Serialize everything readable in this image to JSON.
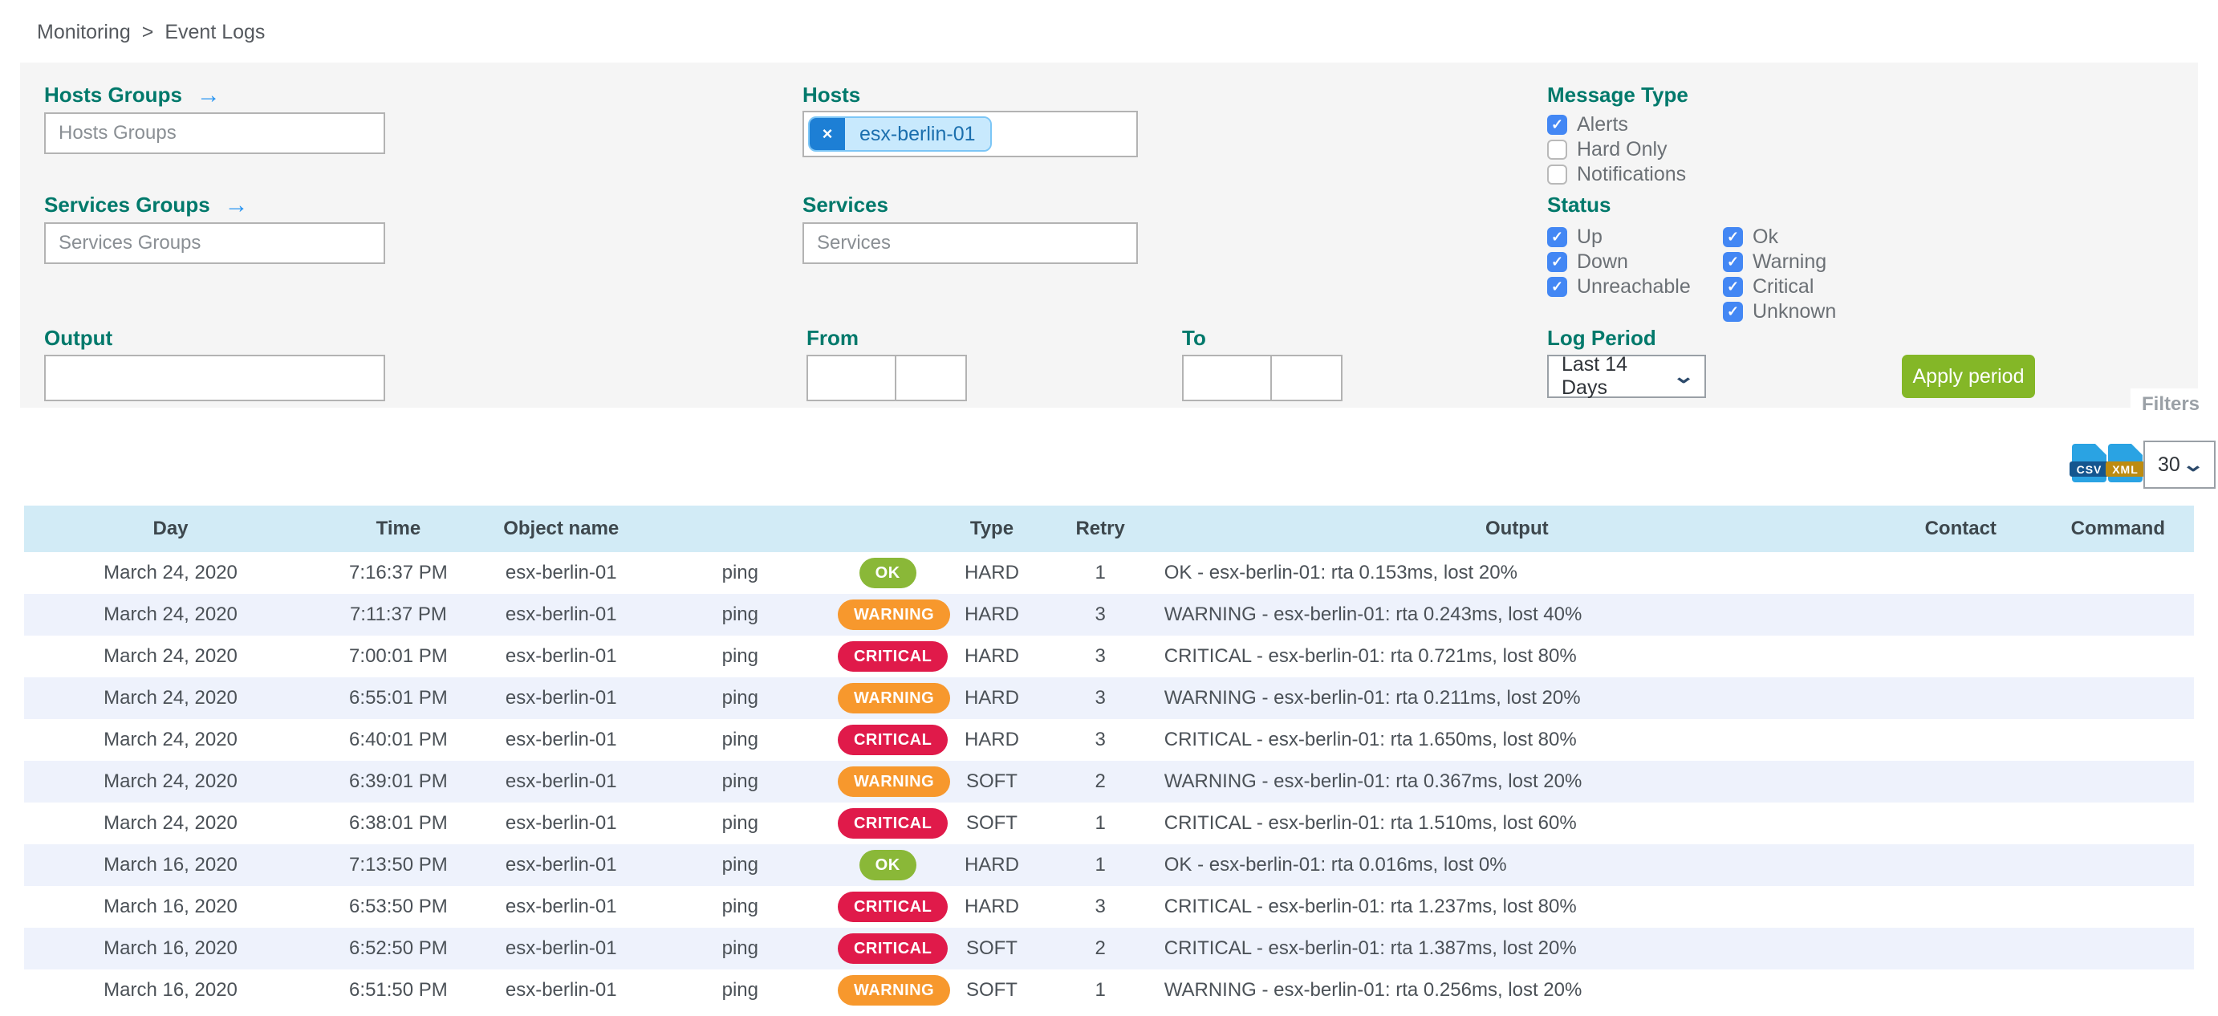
{
  "breadcrumb": {
    "items": [
      "Monitoring",
      "Event Logs"
    ],
    "separator": ">"
  },
  "filters": {
    "hosts_groups": {
      "label": "Hosts Groups",
      "placeholder": "Hosts Groups",
      "arrow": "→"
    },
    "services_groups": {
      "label": "Services Groups",
      "placeholder": "Services Groups",
      "arrow": "→"
    },
    "hosts": {
      "label": "Hosts",
      "chip": "esx-berlin-01",
      "chip_remove": "×"
    },
    "services": {
      "label": "Services",
      "placeholder": "Services"
    },
    "output": {
      "label": "Output",
      "value": ""
    },
    "from": {
      "label": "From",
      "date_value": "",
      "time_value": ""
    },
    "to": {
      "label": "To",
      "date_value": "",
      "time_value": ""
    },
    "message_type": {
      "label": "Message Type",
      "options": [
        {
          "label": "Alerts",
          "checked": true
        },
        {
          "label": "Hard Only",
          "checked": false
        },
        {
          "label": "Notifications",
          "checked": false
        }
      ]
    },
    "status": {
      "label": "Status",
      "col1": [
        {
          "label": "Up",
          "checked": true
        },
        {
          "label": "Down",
          "checked": true
        },
        {
          "label": "Unreachable",
          "checked": true
        }
      ],
      "col2": [
        {
          "label": "Ok",
          "checked": true
        },
        {
          "label": "Warning",
          "checked": true
        },
        {
          "label": "Critical",
          "checked": true
        },
        {
          "label": "Unknown",
          "checked": true
        }
      ]
    },
    "log_period": {
      "label": "Log Period",
      "value": "Last 14 Days"
    },
    "apply_button": "Apply period",
    "filters_tab": "Filters"
  },
  "toolbar": {
    "csv_label": "CSV",
    "xml_label": "XML",
    "page_size": "30"
  },
  "table": {
    "columns": [
      "Day",
      "Time",
      "Object name",
      "",
      "",
      "Type",
      "Retry",
      "Output",
      "Contact",
      "Command"
    ],
    "rows": [
      {
        "day": "March 24, 2020",
        "time": "7:16:37 PM",
        "object": "esx-berlin-01",
        "service": "ping",
        "status": "OK",
        "type": "HARD",
        "retry": "1",
        "output": "OK - esx-berlin-01: rta 0.153ms, lost 20%",
        "contact": "",
        "command": ""
      },
      {
        "day": "March 24, 2020",
        "time": "7:11:37 PM",
        "object": "esx-berlin-01",
        "service": "ping",
        "status": "WARNING",
        "type": "HARD",
        "retry": "3",
        "output": "WARNING - esx-berlin-01: rta 0.243ms, lost 40%",
        "contact": "",
        "command": ""
      },
      {
        "day": "March 24, 2020",
        "time": "7:00:01 PM",
        "object": "esx-berlin-01",
        "service": "ping",
        "status": "CRITICAL",
        "type": "HARD",
        "retry": "3",
        "output": "CRITICAL - esx-berlin-01: rta 0.721ms, lost 80%",
        "contact": "",
        "command": ""
      },
      {
        "day": "March 24, 2020",
        "time": "6:55:01 PM",
        "object": "esx-berlin-01",
        "service": "ping",
        "status": "WARNING",
        "type": "HARD",
        "retry": "3",
        "output": "WARNING - esx-berlin-01: rta 0.211ms, lost 20%",
        "contact": "",
        "command": ""
      },
      {
        "day": "March 24, 2020",
        "time": "6:40:01 PM",
        "object": "esx-berlin-01",
        "service": "ping",
        "status": "CRITICAL",
        "type": "HARD",
        "retry": "3",
        "output": "CRITICAL - esx-berlin-01: rta 1.650ms, lost 80%",
        "contact": "",
        "command": ""
      },
      {
        "day": "March 24, 2020",
        "time": "6:39:01 PM",
        "object": "esx-berlin-01",
        "service": "ping",
        "status": "WARNING",
        "type": "SOFT",
        "retry": "2",
        "output": "WARNING - esx-berlin-01: rta 0.367ms, lost 20%",
        "contact": "",
        "command": ""
      },
      {
        "day": "March 24, 2020",
        "time": "6:38:01 PM",
        "object": "esx-berlin-01",
        "service": "ping",
        "status": "CRITICAL",
        "type": "SOFT",
        "retry": "1",
        "output": "CRITICAL - esx-berlin-01: rta 1.510ms, lost 60%",
        "contact": "",
        "command": ""
      },
      {
        "day": "March 16, 2020",
        "time": "7:13:50 PM",
        "object": "esx-berlin-01",
        "service": "ping",
        "status": "OK",
        "type": "HARD",
        "retry": "1",
        "output": "OK - esx-berlin-01: rta 0.016ms, lost 0%",
        "contact": "",
        "command": ""
      },
      {
        "day": "March 16, 2020",
        "time": "6:53:50 PM",
        "object": "esx-berlin-01",
        "service": "ping",
        "status": "CRITICAL",
        "type": "HARD",
        "retry": "3",
        "output": "CRITICAL - esx-berlin-01: rta 1.237ms, lost 80%",
        "contact": "",
        "command": ""
      },
      {
        "day": "March 16, 2020",
        "time": "6:52:50 PM",
        "object": "esx-berlin-01",
        "service": "ping",
        "status": "CRITICAL",
        "type": "SOFT",
        "retry": "2",
        "output": "CRITICAL - esx-berlin-01: rta 1.387ms, lost 20%",
        "contact": "",
        "command": ""
      },
      {
        "day": "March 16, 2020",
        "time": "6:51:50 PM",
        "object": "esx-berlin-01",
        "service": "ping",
        "status": "WARNING",
        "type": "SOFT",
        "retry": "1",
        "output": "WARNING - esx-berlin-01: rta 0.256ms, lost 20%",
        "contact": "",
        "command": ""
      }
    ]
  },
  "colors": {
    "label_teal": "#00796b",
    "checkbox_blue": "#4387f4",
    "arrow_blue": "#2b96f1",
    "apply_green": "#84b727",
    "badge_ok": "#8ab838",
    "badge_warning": "#f7982d",
    "badge_critical": "#e01a4a",
    "table_header_bg": "#d2ebf6",
    "row_alt_bg": "#eef2fc",
    "panel_bg": "#f5f5f5",
    "chip_bg": "#c8e9fd",
    "chip_remove_bg": "#1d7fd5"
  }
}
